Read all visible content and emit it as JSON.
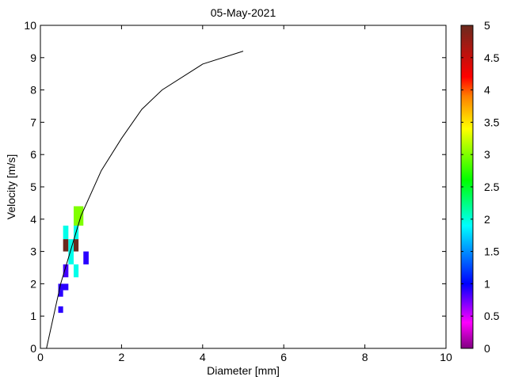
{
  "chart_data": {
    "type": "heatmap",
    "title": "05-May-2021",
    "xlabel": "Diameter [mm]",
    "ylabel": "Velocity [m/s]",
    "xlim": [
      0,
      10
    ],
    "ylim": [
      0,
      10
    ],
    "xticks": [
      "0",
      "2",
      "4",
      "6",
      "8",
      "10"
    ],
    "yticks": [
      "0",
      "1",
      "2",
      "3",
      "4",
      "5",
      "6",
      "7",
      "8",
      "9",
      "10"
    ],
    "grid": false,
    "cells": [
      {
        "d": [
          0.82,
          1.06
        ],
        "v": [
          3.8,
          4.4
        ],
        "value": 2.9,
        "color": "#80ff00"
      },
      {
        "d": [
          0.56,
          0.69
        ],
        "v": [
          3.38,
          3.8
        ],
        "value": 1.8,
        "color": "#00ffea"
      },
      {
        "d": [
          0.82,
          0.94
        ],
        "v": [
          3.38,
          3.8
        ],
        "value": 1.8,
        "color": "#00ffea"
      },
      {
        "d": [
          0.56,
          0.69
        ],
        "v": [
          3.0,
          3.38
        ],
        "value": 5.0,
        "color": "#6b2a1e"
      },
      {
        "d": [
          0.82,
          0.94
        ],
        "v": [
          3.0,
          3.38
        ],
        "value": 5.0,
        "color": "#6b2a1e"
      },
      {
        "d": [
          0.69,
          0.82
        ],
        "v": [
          2.6,
          3.38
        ],
        "value": 1.8,
        "color": "#00ffea"
      },
      {
        "d": [
          1.06,
          1.19
        ],
        "v": [
          2.6,
          3.0
        ],
        "value": 1.0,
        "color": "#2a00ff"
      },
      {
        "d": [
          0.56,
          0.69
        ],
        "v": [
          2.2,
          2.6
        ],
        "value": 0.9,
        "color": "#4400ff"
      },
      {
        "d": [
          0.82,
          0.94
        ],
        "v": [
          2.2,
          2.6
        ],
        "value": 1.8,
        "color": "#00ffea"
      },
      {
        "d": [
          0.44,
          0.69
        ],
        "v": [
          1.8,
          2.0
        ],
        "value": 1.0,
        "color": "#2a00ff"
      },
      {
        "d": [
          0.44,
          0.56
        ],
        "v": [
          1.6,
          1.8
        ],
        "value": 1.0,
        "color": "#2a00ff"
      },
      {
        "d": [
          0.44,
          0.56
        ],
        "v": [
          1.1,
          1.3
        ],
        "value": 1.0,
        "color": "#2a00ff"
      }
    ],
    "fall_velocity_curve": {
      "x": [
        0.15,
        0.5,
        1.0,
        1.5,
        2.0,
        2.5,
        3.0,
        4.0,
        5.0
      ],
      "y": [
        0,
        2.0,
        4.1,
        5.5,
        6.5,
        7.4,
        8.0,
        8.8,
        9.2
      ]
    },
    "colorbar": {
      "range": [
        0,
        5
      ],
      "ticks": [
        "0",
        "0.5",
        "1",
        "1.5",
        "2",
        "2.5",
        "3",
        "3.5",
        "4",
        "4.5",
        "5"
      ],
      "stops": [
        {
          "v": 0,
          "color": "#800080"
        },
        {
          "v": 0.4,
          "color": "#ff00ff"
        },
        {
          "v": 1.0,
          "color": "#0000ff"
        },
        {
          "v": 1.9,
          "color": "#00ffff"
        },
        {
          "v": 2.6,
          "color": "#00ff00"
        },
        {
          "v": 3.4,
          "color": "#ffff00"
        },
        {
          "v": 3.9,
          "color": "#ff8000"
        },
        {
          "v": 4.2,
          "color": "#ff0000"
        },
        {
          "v": 5.0,
          "color": "#6b2a1e"
        }
      ]
    }
  }
}
